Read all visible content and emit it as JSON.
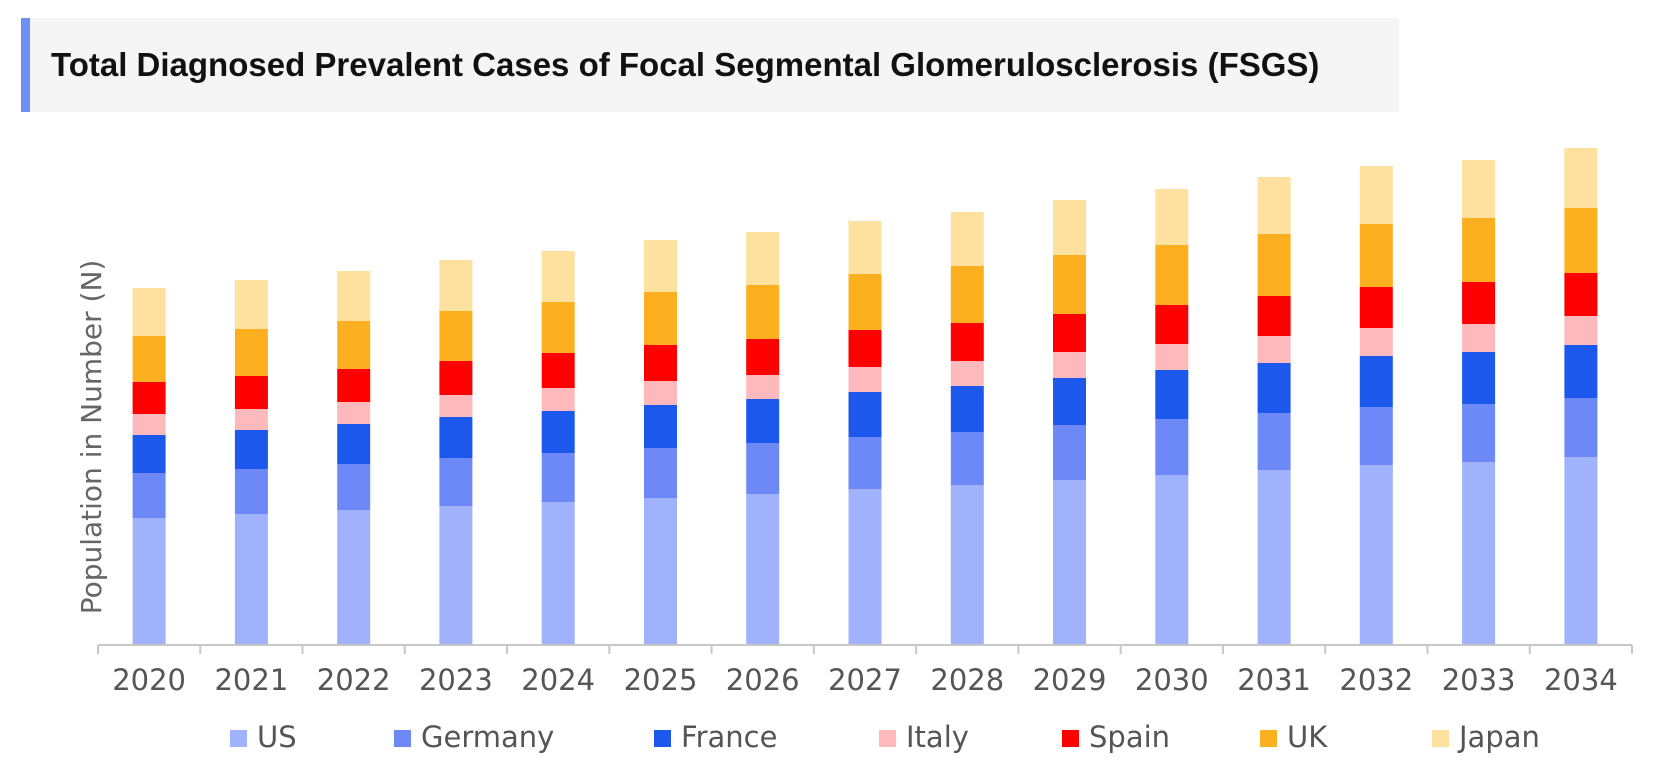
{
  "chart_data": {
    "type": "bar",
    "stacked": true,
    "title": "Total Diagnosed Prevalent Cases of Focal Segmental Glomerulosclerosis (FSGS)",
    "xlabel": "",
    "ylabel": "Population in Number (N)",
    "y_ticks_shown": false,
    "grid": false,
    "legend_position": "bottom",
    "categories": [
      "2020",
      "2021",
      "2022",
      "2023",
      "2024",
      "2025",
      "2026",
      "2027",
      "2028",
      "2029",
      "2030",
      "2031",
      "2032",
      "2033",
      "2034"
    ],
    "series": [
      {
        "name": "US",
        "color": "#a0b2fb",
        "values": [
          127,
          131,
          135,
          139,
          143,
          147,
          151,
          156,
          160,
          165,
          170,
          175,
          180,
          183,
          188
        ]
      },
      {
        "name": "Germany",
        "color": "#6d89f8",
        "values": [
          45,
          45,
          46,
          48,
          49,
          50,
          51,
          52,
          53,
          55,
          56,
          57,
          58,
          58,
          59
        ]
      },
      {
        "name": "France",
        "color": "#1c58ec",
        "values": [
          38,
          39,
          40,
          41,
          42,
          43,
          44,
          45,
          46,
          47,
          49,
          50,
          51,
          52,
          53
        ]
      },
      {
        "name": "Italy",
        "color": "#fdb9bb",
        "values": [
          21,
          21,
          22,
          22,
          23,
          24,
          24,
          25,
          25,
          26,
          26,
          27,
          28,
          28,
          29
        ]
      },
      {
        "name": "Spain",
        "color": "#fe0000",
        "values": [
          32,
          33,
          33,
          34,
          35,
          36,
          36,
          37,
          38,
          38,
          39,
          40,
          41,
          42,
          43
        ]
      },
      {
        "name": "UK",
        "color": "#fcb01f",
        "values": [
          46,
          47,
          48,
          50,
          51,
          53,
          54,
          56,
          57,
          59,
          60,
          62,
          63,
          64,
          65
        ]
      },
      {
        "name": "Japan",
        "color": "#fee09f",
        "values": [
          48,
          49,
          50,
          51,
          51,
          52,
          53,
          53,
          54,
          55,
          56,
          57,
          58,
          58,
          60
        ]
      }
    ]
  }
}
